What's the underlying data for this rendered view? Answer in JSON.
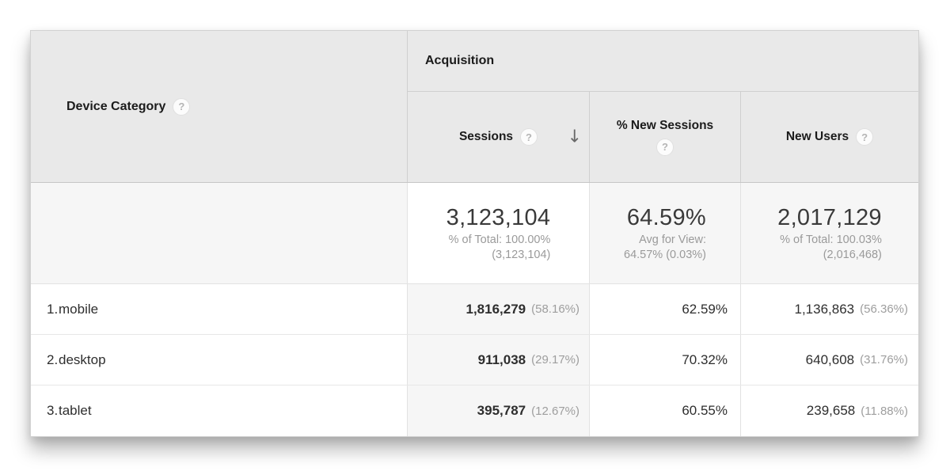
{
  "table": {
    "dimension_header": {
      "label": "Device Category"
    },
    "group_header": "Acquisition",
    "columns": {
      "sessions": {
        "label": "Sessions"
      },
      "percent_new_sessions": {
        "label": "% New Sessions"
      },
      "new_users": {
        "label": "New Users"
      }
    },
    "icons": {
      "help": "?",
      "sort_descending": "↓"
    },
    "totals": {
      "sessions": {
        "value": "3,123,104",
        "detail_line1": "% of Total: 100.00%",
        "detail_line2": "(3,123,104)"
      },
      "percent_new_sessions": {
        "value": "64.59%",
        "detail_line1": "Avg for View:",
        "detail_line2": "64.57% (0.03%)"
      },
      "new_users": {
        "value": "2,017,129",
        "detail_line1": "% of Total: 100.03%",
        "detail_line2": "(2,016,468)"
      }
    },
    "rows": [
      {
        "index": "1.",
        "device": "mobile",
        "sessions": "1,816,279",
        "sessions_share": "(58.16%)",
        "percent_new_sessions": "62.59%",
        "new_users": "1,136,863",
        "new_users_share": "(56.36%)"
      },
      {
        "index": "2.",
        "device": "desktop",
        "sessions": "911,038",
        "sessions_share": "(29.17%)",
        "percent_new_sessions": "70.32%",
        "new_users": "640,608",
        "new_users_share": "(31.76%)"
      },
      {
        "index": "3.",
        "device": "tablet",
        "sessions": "395,787",
        "sessions_share": "(12.67%)",
        "percent_new_sessions": "60.55%",
        "new_users": "239,658",
        "new_users_share": "(11.88%)"
      }
    ],
    "colors": {
      "header_bg": "#e9e9e9",
      "summary_row_bg": "#f6f6f6",
      "sorted_column_body_bg": "#f6f6f6",
      "sorted_column_summary_bg": "#ffffff",
      "primary_text": "#2e2e2e",
      "secondary_text": "#9a9a9a"
    }
  }
}
